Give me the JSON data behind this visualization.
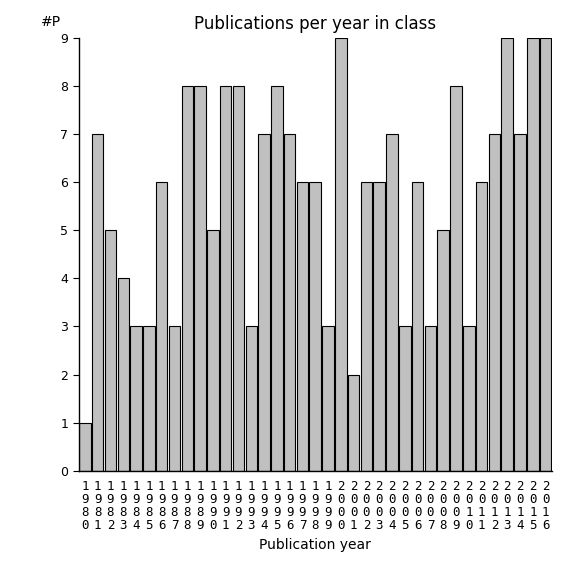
{
  "years": [
    1980,
    1981,
    1982,
    1983,
    1984,
    1985,
    1986,
    1987,
    1988,
    1989,
    1990,
    1991,
    1992,
    1993,
    1994,
    1995,
    1996,
    1997,
    1998,
    1999,
    2000,
    2001,
    2002,
    2003,
    2004,
    2005,
    2006,
    2007,
    2008,
    2009,
    2010,
    2011,
    2012,
    2013,
    2014,
    2015,
    2016
  ],
  "values": [
    1,
    7,
    5,
    4,
    3,
    3,
    6,
    3,
    8,
    8,
    5,
    8,
    8,
    3,
    7,
    8,
    7,
    6,
    6,
    3,
    9,
    2,
    6,
    6,
    7,
    3,
    6,
    3,
    5,
    8,
    3,
    6,
    7,
    9,
    7,
    9,
    9
  ],
  "bar_color": "#c0c0c0",
  "bar_edgecolor": "#000000",
  "title": "Publications per year in class",
  "xlabel": "Publication year",
  "ylabel": "#P",
  "ylim_min": 0,
  "ylim_max": 9,
  "yticks": [
    0,
    1,
    2,
    3,
    4,
    5,
    6,
    7,
    8,
    9
  ],
  "bg_color": "#ffffff",
  "title_fontsize": 12,
  "label_fontsize": 10,
  "tick_fontsize": 9,
  "bar_width": 0.9,
  "figsize": [
    5.67,
    5.67
  ],
  "dpi": 100
}
